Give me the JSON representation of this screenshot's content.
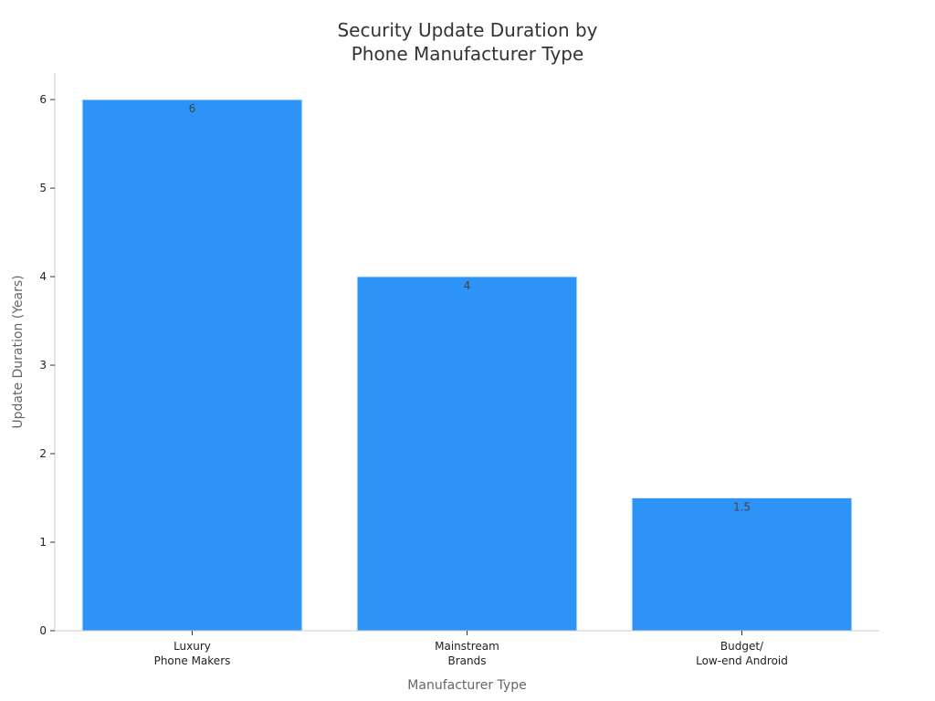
{
  "chart_data": {
    "type": "bar",
    "title": "Security Update Duration by\nPhone Manufacturer Type",
    "xlabel": "Manufacturer Type",
    "ylabel": "Update Duration (Years)",
    "categories": [
      "Luxury\nPhone Makers",
      "Mainstream\nBrands",
      "Budget/\nLow-end Android"
    ],
    "values": [
      6,
      4,
      1.5
    ],
    "data_labels": [
      "6",
      "4",
      "1.5"
    ],
    "ylim": [
      0,
      6.3
    ],
    "yticks": [
      0,
      1,
      2,
      3,
      4,
      5,
      6
    ],
    "grid": false,
    "legend": "none",
    "colors": {
      "bar": "#2e93f6",
      "bar_edge": "#d9ecfd",
      "axis": "#cccccc",
      "tick": "#333333"
    }
  }
}
